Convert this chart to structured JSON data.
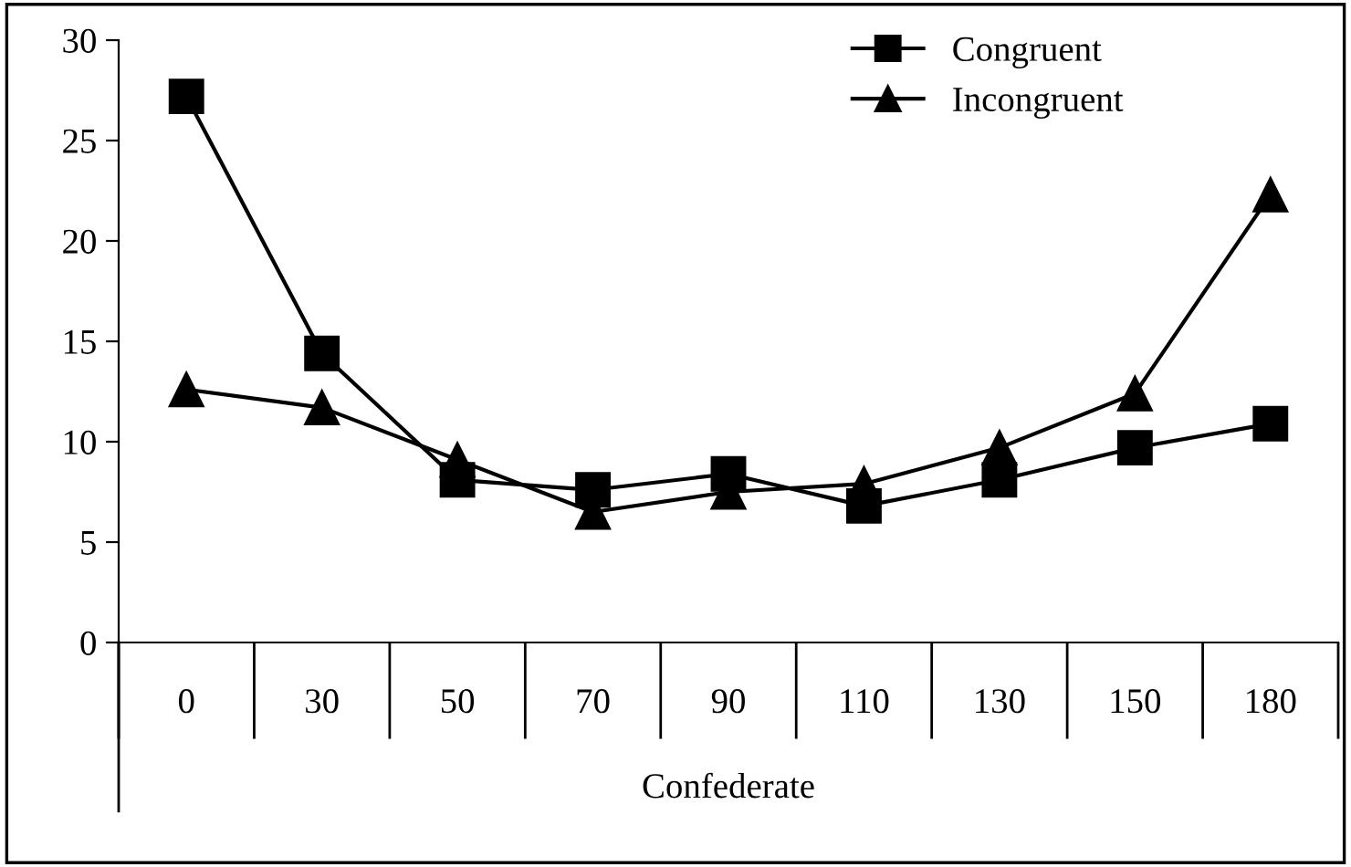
{
  "chart_data": {
    "type": "line",
    "xlabel": "Confederate",
    "categories": [
      "0",
      "30",
      "50",
      "70",
      "90",
      "110",
      "130",
      "150",
      "180"
    ],
    "series": [
      {
        "name": "Congruent",
        "color": "#000000",
        "marker": "square",
        "values": [
          27.2,
          14.4,
          8.1,
          7.6,
          8.4,
          6.8,
          8.1,
          9.7,
          10.9
        ]
      },
      {
        "name": "Incongruent",
        "color": "#000000",
        "marker": "triangle",
        "values": [
          12.6,
          11.7,
          9.1,
          6.5,
          7.5,
          7.9,
          9.7,
          12.4,
          22.3
        ]
      }
    ],
    "ylim": [
      0,
      30
    ],
    "yticks": [
      0,
      5,
      10,
      15,
      20,
      25,
      30
    ],
    "grid": false,
    "legend": "top right",
    "line_style": "solid"
  }
}
